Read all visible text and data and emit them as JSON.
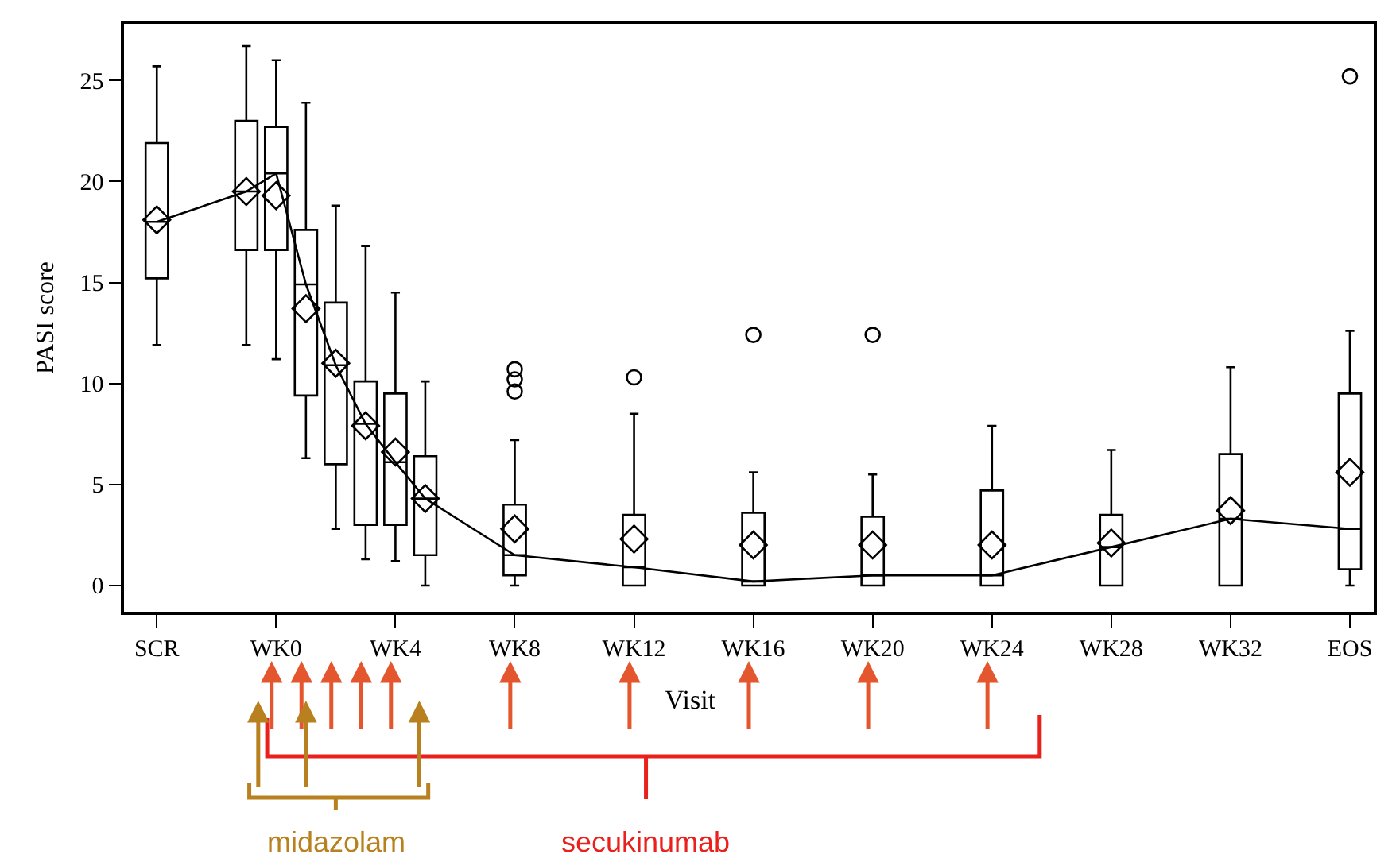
{
  "chart_data": {
    "type": "box",
    "xlabel": "Visit",
    "ylabel": "PASI score",
    "color": "#000000",
    "categories": [
      "SCR",
      null,
      null,
      null,
      "WK0",
      null,
      null,
      null,
      "WK4",
      null,
      null,
      null,
      "WK8",
      null,
      null,
      null,
      "WK12",
      null,
      null,
      null,
      "WK16",
      null,
      null,
      null,
      "WK20",
      null,
      null,
      null,
      "WK24",
      null,
      null,
      null,
      "WK28",
      null,
      null,
      null,
      "WK32",
      null,
      null,
      null,
      "EOS"
    ],
    "ylim": [
      -1.3,
      27.8
    ],
    "yticks": [
      0,
      5,
      10,
      15,
      20,
      25
    ],
    "boxes": [
      {
        "low": 11.9,
        "q1": 15.2,
        "median": 18.0,
        "q3": 21.9,
        "high": 25.7,
        "mean": 18.1
      },
      null,
      null,
      {
        "low": 11.9,
        "q1": 16.6,
        "median": 19.5,
        "q3": 23.0,
        "high": 26.7,
        "mean": 19.5
      },
      {
        "low": 11.2,
        "q1": 16.6,
        "median": 20.4,
        "q3": 22.7,
        "high": 26.0,
        "mean": 19.3
      },
      {
        "low": 6.3,
        "q1": 9.4,
        "median": 14.9,
        "q3": 17.6,
        "high": 23.9,
        "mean": 13.7
      },
      {
        "low": 2.8,
        "q1": 6.0,
        "median": 10.9,
        "q3": 14.0,
        "high": 18.8,
        "mean": 11.0
      },
      {
        "low": 1.3,
        "q1": 3.0,
        "median": 8.0,
        "q3": 10.1,
        "high": 16.8,
        "mean": 7.9
      },
      {
        "low": 1.2,
        "q1": 3.0,
        "median": 6.1,
        "q3": 9.5,
        "high": 14.5,
        "mean": 6.6
      },
      {
        "low": 0,
        "q1": 1.5,
        "median": 4.3,
        "q3": 6.4,
        "high": 10.1,
        "mean": 4.3
      },
      null,
      null,
      {
        "low": 0,
        "q1": 0.5,
        "median": 1.5,
        "q3": 4.0,
        "high": 7.2,
        "mean": 2.8,
        "outliers": [
          10.7,
          10.2,
          9.6
        ]
      },
      null,
      null,
      null,
      {
        "low": 0,
        "q1": 0,
        "median": 0.9,
        "q3": 3.5,
        "high": 8.5,
        "mean": 2.3,
        "outliers": [
          10.3
        ]
      },
      null,
      null,
      null,
      {
        "low": 0,
        "q1": 0,
        "median": 0.2,
        "q3": 3.6,
        "high": 5.6,
        "mean": 2.0,
        "outliers": [
          12.4
        ]
      },
      null,
      null,
      null,
      {
        "low": 0,
        "q1": 0,
        "median": 0.5,
        "q3": 3.4,
        "high": 5.5,
        "mean": 2.0,
        "outliers": [
          12.4
        ]
      },
      null,
      null,
      null,
      {
        "low": 0,
        "q1": 0,
        "median": 0.5,
        "q3": 4.7,
        "high": 7.9,
        "mean": 2.0
      },
      null,
      null,
      null,
      {
        "low": 0,
        "q1": 0,
        "median": 1.9,
        "q3": 3.5,
        "high": 6.7,
        "mean": 2.1
      },
      null,
      null,
      null,
      {
        "low": 0,
        "q1": 0,
        "median": 3.3,
        "q3": 6.5,
        "high": 10.8,
        "mean": 3.7
      },
      null,
      null,
      null,
      {
        "low": 0,
        "q1": 0.8,
        "median": 2.8,
        "q3": 9.5,
        "high": 12.6,
        "mean": 5.6,
        "outliers": [
          25.2
        ]
      }
    ],
    "series": [
      {
        "type": "line",
        "color": "#000000",
        "values": [
          18.0,
          null,
          null,
          19.5,
          20.4,
          14.9,
          10.9,
          8.0,
          6.1,
          4.3,
          null,
          null,
          1.5,
          null,
          null,
          null,
          0.9,
          null,
          null,
          null,
          0.2,
          null,
          null,
          null,
          0.5,
          null,
          null,
          null,
          0.5,
          null,
          null,
          null,
          1.9,
          null,
          null,
          null,
          3.3,
          null,
          null,
          null,
          2.8
        ]
      }
    ],
    "annotations": [
      "midazolam",
      "secukinumab"
    ]
  }
}
